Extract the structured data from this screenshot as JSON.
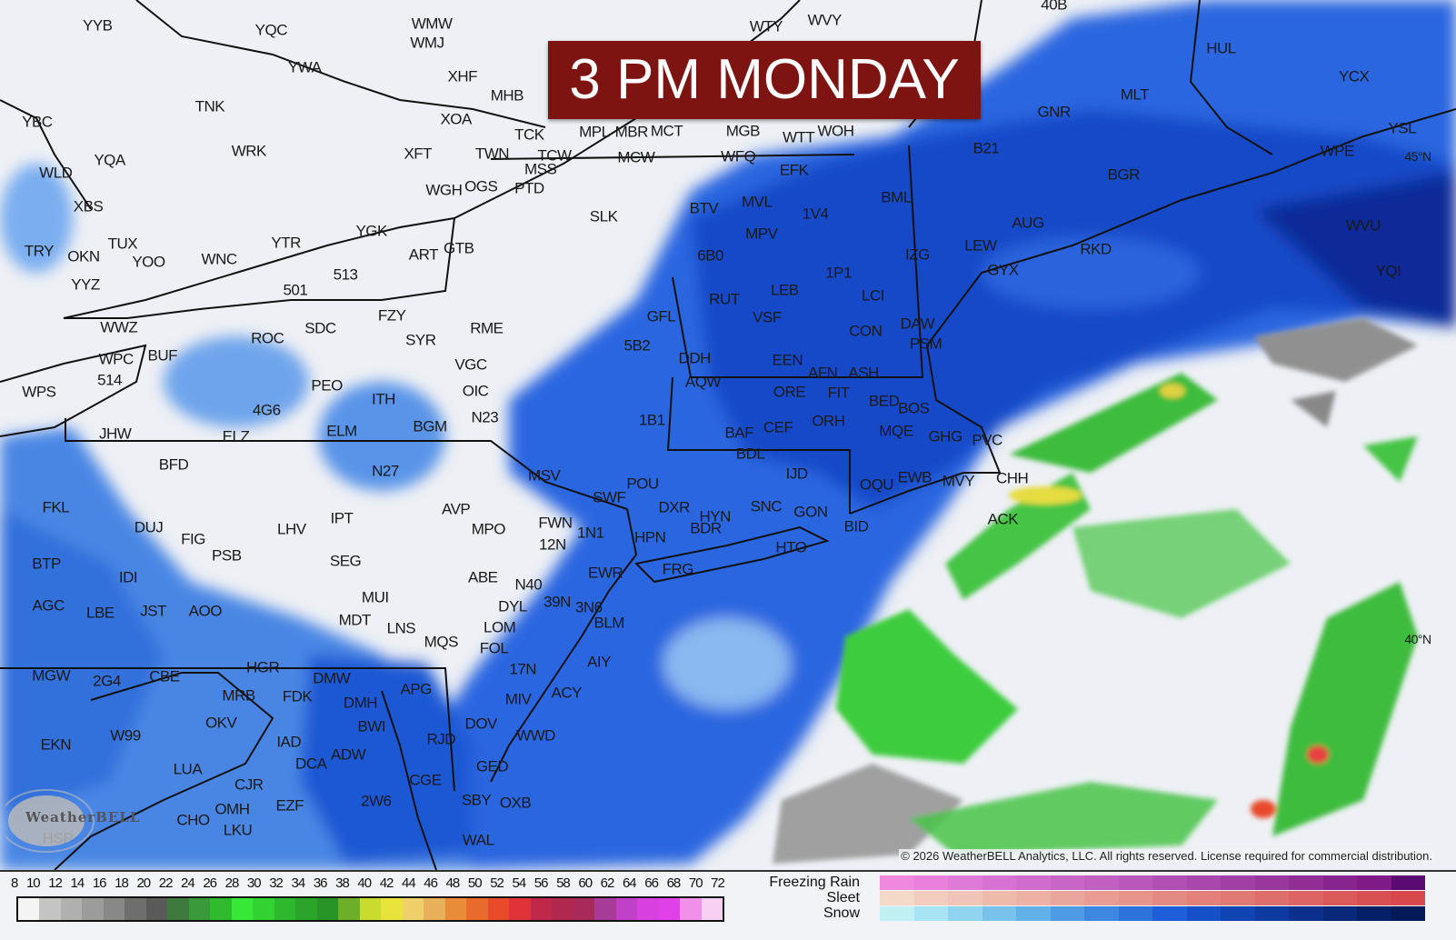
{
  "title": "3 PM MONDAY",
  "copyright": "© 2026 WeatherBELL Analytics, LLC. All rights reserved. License required for commercial distribution.",
  "logo": {
    "text": "WeatherBELL",
    "subtext": "Analytics LLC"
  },
  "latitude_labels": [
    "45°N",
    "40°N"
  ],
  "stations": [
    "YYB",
    "YQC",
    "WMW",
    "WMJ",
    "WTY",
    "WVY",
    "40B",
    "HUL",
    "YCX",
    "YWA",
    "XHF",
    "MHB",
    "TNK",
    "XOA",
    "TCK",
    "MPL",
    "MBR",
    "MCT",
    "MGB",
    "WTT",
    "WOH",
    "GNR",
    "MLT",
    "YSL",
    "WRK",
    "YQA",
    "XFT",
    "TWN",
    "TCW",
    "MCW",
    "WFQ",
    "B21",
    "WPE",
    "YBC",
    "MSS",
    "EFK",
    "WLD",
    "OGS",
    "PTD",
    "BGR",
    "BML",
    "XBS",
    "SLK",
    "BTV",
    "MVL",
    "1V4",
    "AUG",
    "WVU",
    "WGH",
    "TRY",
    "OKN",
    "TUX",
    "YOO",
    "WNC",
    "YTR",
    "YGK",
    "ART",
    "GTB",
    "MPV",
    "6B0",
    "IZG",
    "LEW",
    "GYX",
    "RKD",
    "YYZ",
    "513",
    "501",
    "1P1",
    "RUT",
    "LEB",
    "LCI",
    "FZY",
    "YQI",
    "SDC",
    "RME",
    "GFL",
    "VSF",
    "CON",
    "DAW",
    "PSM",
    "ROC",
    "SYR",
    "WWZ",
    "5B2",
    "BUF",
    "WPC",
    "514",
    "VGC",
    "DDH",
    "EEN",
    "AFN",
    "ASH",
    "PEO",
    "OIC",
    "AQW",
    "ORE",
    "FIT",
    "BED",
    "WPS",
    "ITH",
    "4G6",
    "N23",
    "1B1",
    "ORH",
    "BOS",
    "MQE",
    "BGM",
    "ELM",
    "BAF",
    "CEF",
    "GHG",
    "PVC",
    "JHW",
    "ELZ",
    "BDL",
    "MSV",
    "BFD",
    "N27",
    "IJD",
    "CHH",
    "POU",
    "SWF",
    "OQU",
    "EWB",
    "MVY",
    "FKL",
    "AVP",
    "DXR",
    "SNC",
    "GON",
    "HYN",
    "DUJ",
    "FWN",
    "12N",
    "1N1",
    "LHV",
    "IPT",
    "MPO",
    "FIG",
    "HPN",
    "BDR",
    "BID",
    "ACK",
    "HTO",
    "BTP",
    "PSB",
    "SEG",
    "FRG",
    "EWR",
    "ABE",
    "IDI",
    "N40",
    "39N",
    "3N6",
    "AGC",
    "LBE",
    "JST",
    "AOO",
    "MUI",
    "DYL",
    "BLM",
    "MDT",
    "LNS",
    "LOM",
    "MQS",
    "FOL",
    "MGW",
    "2G4",
    "CBE",
    "HGR",
    "DMW",
    "17N",
    "AIY",
    "ACY",
    "MRB",
    "FDK",
    "APG",
    "MIV",
    "OKV",
    "DMH",
    "BWI",
    "DOV",
    "WWD",
    "W99",
    "EKN",
    "IAD",
    "DCA",
    "ADW",
    "RJD",
    "GED",
    "LUA",
    "CJR",
    "CGE",
    "SBY",
    "OXB",
    "2W6",
    "OMH",
    "EZF",
    "CHO",
    "LKU",
    "HSP",
    "WAL"
  ],
  "legend_rain": {
    "ticks": [
      "8",
      "10",
      "12",
      "14",
      "16",
      "18",
      "20",
      "22",
      "24",
      "26",
      "28",
      "30",
      "32",
      "34",
      "36",
      "38",
      "40",
      "42",
      "44",
      "46",
      "48",
      "50",
      "52",
      "54",
      "56",
      "58",
      "60",
      "62",
      "64",
      "66",
      "68",
      "70",
      "72"
    ],
    "colors": [
      "#f4f4f4",
      "#c4c4c4",
      "#b0b0b0",
      "#9c9c9c",
      "#888888",
      "#6e6e6e",
      "#5a5a5a",
      "#3e7a3e",
      "#3a9a3a",
      "#2ebb2e",
      "#38e838",
      "#33d233",
      "#2eb82e",
      "#2aa52a",
      "#289428",
      "#6cb02a",
      "#c8dc30",
      "#e8e43a",
      "#eecf6a",
      "#e8b05a",
      "#e88c38",
      "#e86a2c",
      "#e84a2a",
      "#e03238",
      "#c0284a",
      "#b02850",
      "#a82a58",
      "#a83a98",
      "#c040c8",
      "#d840e0",
      "#e040e8",
      "#f090e8",
      "#f8d0f4"
    ]
  },
  "legend_ptype": {
    "rows": [
      {
        "label": "Freezing Rain",
        "colors": [
          "#f088e0",
          "#e880dc",
          "#e07ad8",
          "#d872d2",
          "#d06ccc",
          "#c866c6",
          "#c060c0",
          "#b858ba",
          "#b050b4",
          "#a848ac",
          "#a040a6",
          "#98389e",
          "#902e96",
          "#88248e",
          "#801a86",
          "#5a0a72"
        ]
      },
      {
        "label": "Sleet",
        "colors": [
          "#f4d8c8",
          "#f2cdbf",
          "#f0c4b6",
          "#eebaac",
          "#ecb0a4",
          "#eaa69c",
          "#e89c94",
          "#e6948c",
          "#e48a84",
          "#e2807c",
          "#e07874",
          "#de6e6c",
          "#dc6464",
          "#da5a5c",
          "#d85054",
          "#d6484c"
        ]
      },
      {
        "label": "Snow",
        "colors": [
          "#c0f0f4",
          "#a8e4f4",
          "#90d4f0",
          "#78c2ec",
          "#62b0e8",
          "#4e9ce4",
          "#3c88e0",
          "#2c74dc",
          "#1e5ed8",
          "#1650c8",
          "#1044b4",
          "#0c3aa0",
          "#0a308c",
          "#08287a",
          "#062068",
          "#041a58"
        ]
      }
    ]
  },
  "colors": {
    "title_bg": "#7e1412",
    "snow_blue": "#1e5ed8",
    "rain_green": "#2ebb2e"
  }
}
